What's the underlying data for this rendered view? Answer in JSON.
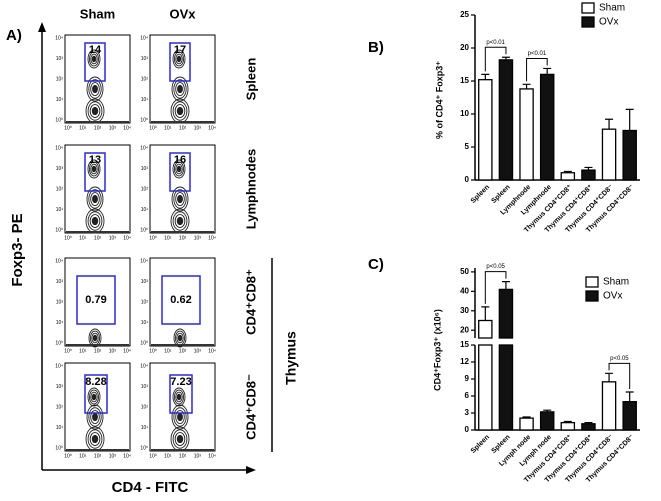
{
  "panel_a": {
    "label": "A)",
    "y_label": "Foxp3- PE",
    "x_label": "CD4 - FITC",
    "columns": [
      "Sham",
      "OVx"
    ],
    "rows": [
      "Spleen",
      "Lymphnodes",
      "CD4⁺CD8⁺",
      "CD4⁺CD8⁻"
    ],
    "group_label": "Thymus",
    "gates": [
      [
        14,
        17
      ],
      [
        13,
        16
      ],
      [
        0.79,
        0.62
      ],
      [
        8.28,
        7.23
      ]
    ],
    "axis_ticks": [
      "10⁰",
      "10¹",
      "10²",
      "10³",
      "10⁴"
    ]
  },
  "chart_data": [
    {
      "type": "bar",
      "panel_label": "B)",
      "y_label": "% of CD4⁺ Foxp3⁺",
      "categories": [
        "Spleen",
        "Spleen",
        "Lymphnode",
        "Lymphnode",
        "Thymus CD4⁺CD8⁺",
        "Thymus CD4⁺CD8⁺",
        "Thymus CD4⁺CD8⁻",
        "Thymus CD4⁺CD8⁻"
      ],
      "series": [
        {
          "name": "Sham",
          "color": "#ffffff",
          "values": [
            15.2,
            null,
            13.8,
            null,
            1.1,
            null,
            7.7,
            null
          ],
          "errors": [
            0.8,
            null,
            0.7,
            null,
            0.2,
            null,
            1.5,
            null
          ]
        },
        {
          "name": "OVx",
          "color": "#111111",
          "values": [
            null,
            18.2,
            null,
            16.0,
            null,
            1.5,
            null,
            7.5
          ],
          "errors": [
            null,
            0.4,
            null,
            0.9,
            null,
            0.4,
            null,
            3.2
          ]
        }
      ],
      "ylim": [
        0,
        25
      ],
      "yticks": [
        0,
        5,
        10,
        15,
        20,
        25
      ],
      "annotations": [
        "p<0.01",
        "p<0.01"
      ]
    },
    {
      "type": "bar",
      "panel_label": "C)",
      "y_label": "CD4⁺Foxp3⁺ (x10⁶)",
      "categories": [
        "Spleen",
        "Spleen",
        "Lymph node",
        "Lymph node",
        "Thymus CD4⁺CD8⁺",
        "Thymus CD4⁺CD8⁺",
        "Thymus CD4⁺CD8⁻",
        "Thymus CD4⁺CD8⁻"
      ],
      "series": [
        {
          "name": "Sham",
          "color": "#ffffff",
          "values": [
            25,
            null,
            2.1,
            null,
            1.3,
            null,
            8.5,
            null
          ],
          "errors": [
            7,
            null,
            0.2,
            null,
            0.2,
            null,
            1.5,
            null
          ]
        },
        {
          "name": "OVx",
          "color": "#111111",
          "values": [
            null,
            41,
            null,
            3.2,
            null,
            1.1,
            null,
            5.0
          ],
          "errors": [
            null,
            4,
            null,
            0.3,
            null,
            0.2,
            null,
            1.7
          ]
        }
      ],
      "ylim_lower": [
        0,
        15
      ],
      "yticks_lower": [
        0,
        3,
        6,
        9,
        12,
        15
      ],
      "ylim_upper": [
        16,
        52
      ],
      "yticks_upper": [
        20,
        30,
        40,
        50
      ],
      "annotations": [
        "p<0.05",
        "p<0.05"
      ]
    }
  ]
}
